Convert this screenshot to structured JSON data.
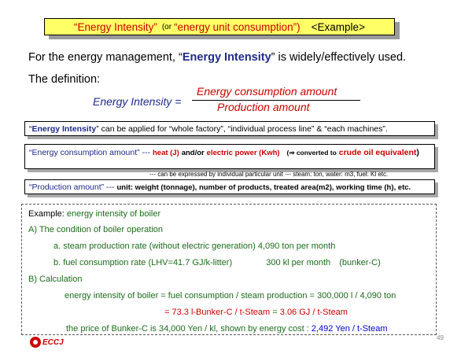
{
  "title": {
    "part1": "“Energy Intensity”",
    "part2": "(or",
    "part3": "“energy unit consumption”)",
    "part4": "<Example>"
  },
  "intro": {
    "prefix": "For the energy management, “",
    "term": "Energy Intensity",
    "suffix": "” is widely/effectively used."
  },
  "definition_label": "The definition:",
  "formula": {
    "lhs": "Energy Intensity =",
    "numerator": "Energy consumption amount",
    "denominator": "Production amount"
  },
  "box1": {
    "q1": "“",
    "term": "Energy Intensity",
    "rest": "” can be applied for “whole factory”, “individual process line”  & “each machines”."
  },
  "box2": {
    "term": "“Energy consumption amount” ---",
    "heat": "heat (J)",
    "andor": "and/or",
    "elec": "electric power (Kwh)",
    "arrow": "(⇒ converted to",
    "crude": "crude oil equivalent",
    "close": ")",
    "note": "---  can be expressed by individual particular unit --- steam: ton,  water: m3,  fuel: Kl etc."
  },
  "box3": {
    "term": "“Production amount” ---",
    "rest": "unit: weight (tonnage), number of products, treated area(m2), working time (h), etc."
  },
  "example": {
    "label": "Example:",
    "label_rest": "energy intensity of boiler",
    "a_header": "A) The condition of boiler operation",
    "a_line1": "a. steam production rate (without electric generation) 4,090 ton per month",
    "a_line2a": "b. fuel consumption rate (LHV=41.7 GJ/k-litter)",
    "a_line2b": "300 kl per month",
    "a_line2c": "(bunker-C)",
    "b_header": "B) Calculation",
    "b_line1": "energy intensity of boiler = fuel consumption / steam production = 300,000 l / 4,090 ton",
    "b_line2a": "= 73.3 l-Bunker-C / t-Steam",
    "b_line2b": "=",
    "b_line2c": "3.06 GJ / t-Steam",
    "b_line3a": "the price of Bunker-C is 34,000 Yen / kl,    shown by energy cost :",
    "b_line3b": "2,492 Yen / t-Steam"
  },
  "page_number": "49",
  "logo_text": "ECCJ",
  "colors": {
    "title_bg": "#ffff66",
    "red": "#cc0000",
    "navy": "#1f2a8a",
    "green": "#1d6b1d",
    "blue": "#0000cc"
  }
}
